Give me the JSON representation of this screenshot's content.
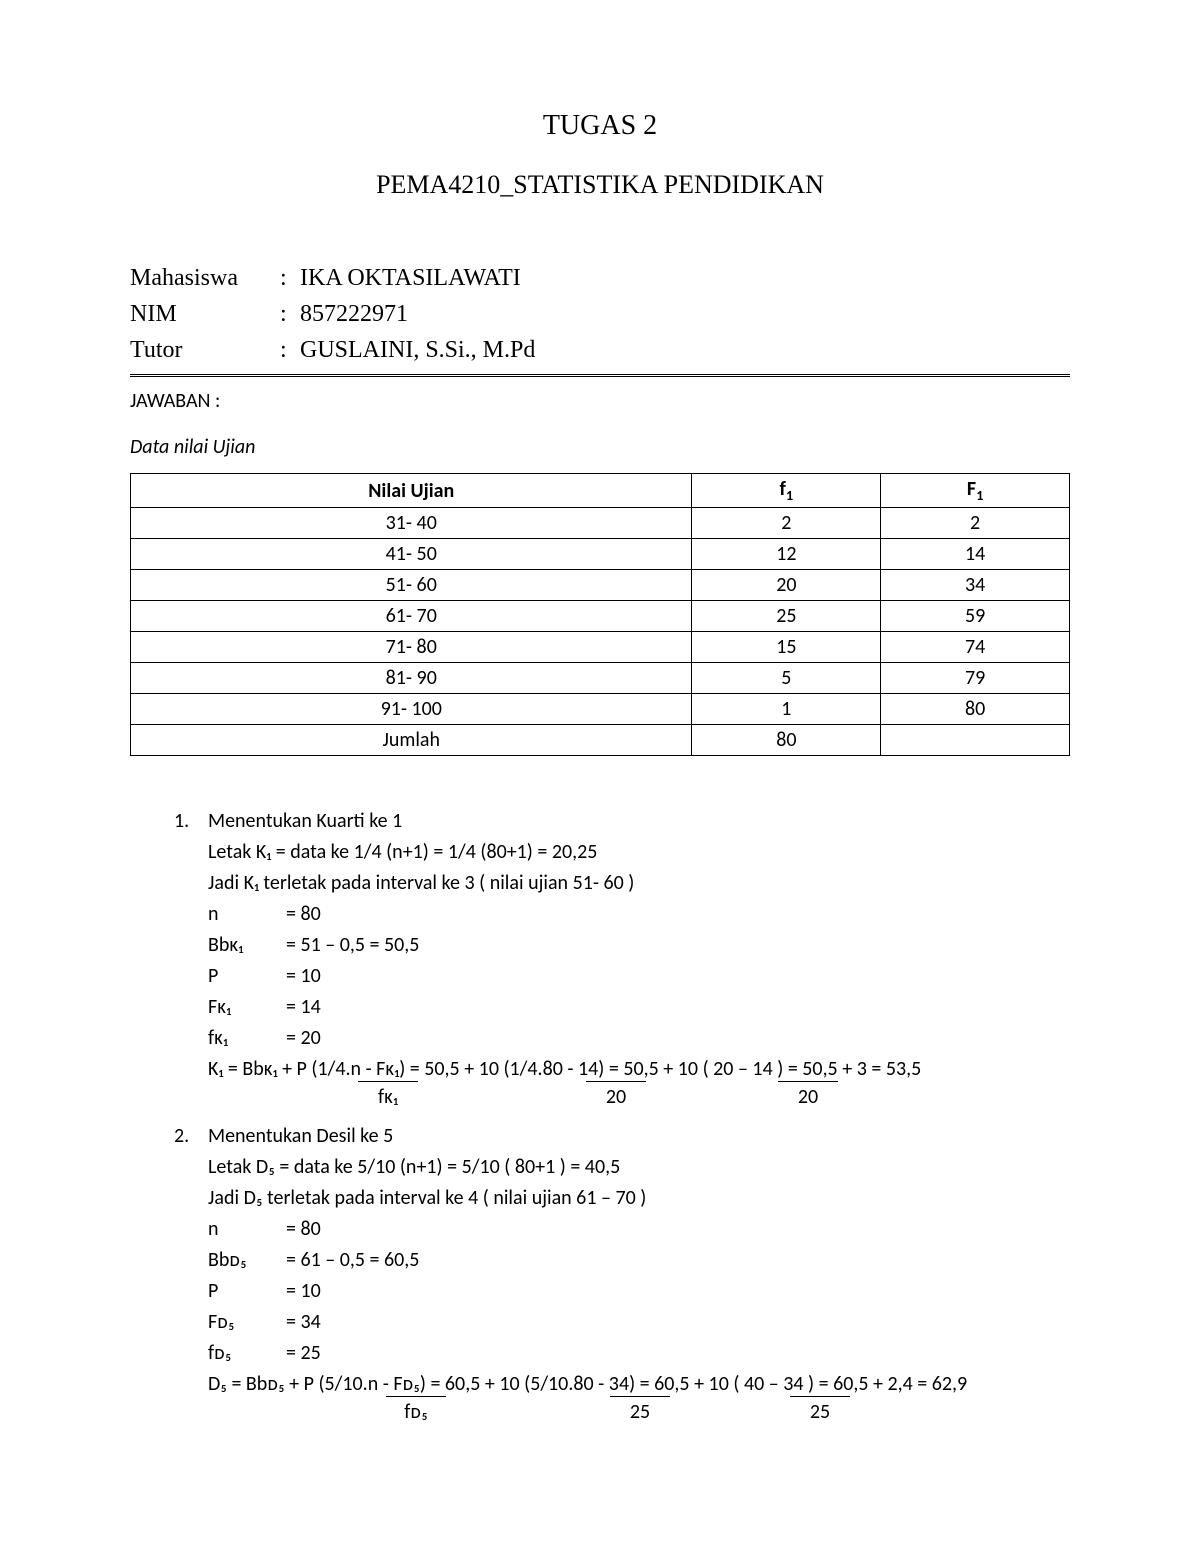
{
  "title_main": "TUGAS 2",
  "title_sub": "PEMA4210_STATISTIKA PENDIDIKAN",
  "info": {
    "student_label": "Mahasiswa",
    "student_name": "IKA OKTASILAWATI",
    "nim_label": "NIM",
    "nim": "857222971",
    "tutor_label": "Tutor",
    "tutor": "GUSLAINI, S.Si., M.Pd"
  },
  "answer_label": "JAWABAN :",
  "data_title": "Data nilai Ujian",
  "table": {
    "type": "table",
    "columns": [
      "Nilai Ujian",
      "f₁",
      "F₁"
    ],
    "col0": "Nilai Ujian",
    "col1_base": "f",
    "col1_sub": "1",
    "col2_base": "F",
    "col2_sub": "1",
    "rows": [
      [
        "31- 40",
        "2",
        "2"
      ],
      [
        "41- 50",
        "12",
        "14"
      ],
      [
        "51- 60",
        "20",
        "34"
      ],
      [
        "61- 70",
        "25",
        "59"
      ],
      [
        "71- 80",
        "15",
        "74"
      ],
      [
        "81- 90",
        "5",
        "79"
      ],
      [
        "91- 100",
        "1",
        "80"
      ],
      [
        "Jumlah",
        "80",
        ""
      ]
    ],
    "border_color": "#000000",
    "background": "#ffffff",
    "font_size": 20
  },
  "calc1": {
    "num": "1.",
    "title": "Menentukan Kuarti ke 1",
    "line_letak": "Letak K₁ = data ke 1/4 (n+1) = 1/4 (80+1) = 20,25",
    "line_jadi": "Jadi K₁ terletak pada interval ke 3 ( nilai ujian 51- 60 )",
    "vars": {
      "n_label": "n",
      "n_val": "= 80",
      "bb_label": "Bbᴋ₁",
      "bb_val": "= 51 – 0,5 = 50,5",
      "p_label": "P",
      "p_val": "= 10",
      "Fu_label": "Fᴋ₁",
      "Fu_val": "= 14",
      "fl_label": "fᴋ₁",
      "fl_val": "= 20"
    },
    "formula": "K₁ = Bbᴋ₁ + P (1/4.n - Fᴋ₁)  = 50,5 + 10 (1/4.80 - 14)  = 50,5 + 10 ( 20 – 14 )  = 50,5 + 3 = 53,5",
    "frac": {
      "d1": "fᴋ₁",
      "d2": "20",
      "d3": "20"
    }
  },
  "calc2": {
    "num": "2.",
    "title": "Menentukan Desil ke 5",
    "line_letak": "Letak D₅ = data ke 5/10 (n+1) = 5/10 ( 80+1 ) = 40,5",
    "line_jadi": "Jadi D₅ terletak pada interval ke 4 ( nilai ujian 61 – 70 )",
    "vars": {
      "n_label": "n",
      "n_val": "= 80",
      "bb_label": "Bbᴅ₅",
      "bb_val": "= 61 – 0,5 = 60,5",
      "p_label": "P",
      "p_val": "= 10",
      "Fu_label": "Fᴅ₅",
      "Fu_val": "= 34",
      "fl_label": "fᴅ₅",
      "fl_val": "= 25"
    },
    "formula": "D₅ = Bbᴅ₅ + P (5/10.n - Fᴅ₅)  = 60,5 + 10 (5/10.80 - 34)  = 60,5 + 10 ( 40 – 34 )  = 60,5 + 2,4 = 62,9",
    "frac": {
      "d1": "fᴅ₅",
      "d2": "25",
      "d3": "25"
    }
  },
  "colors": {
    "text": "#000000",
    "background": "#ffffff",
    "border": "#000000"
  },
  "fonts": {
    "serif": "Times New Roman",
    "sans": "Calibri",
    "title_size": 28,
    "subtitle_size": 26,
    "info_size": 24,
    "body_size": 20
  }
}
